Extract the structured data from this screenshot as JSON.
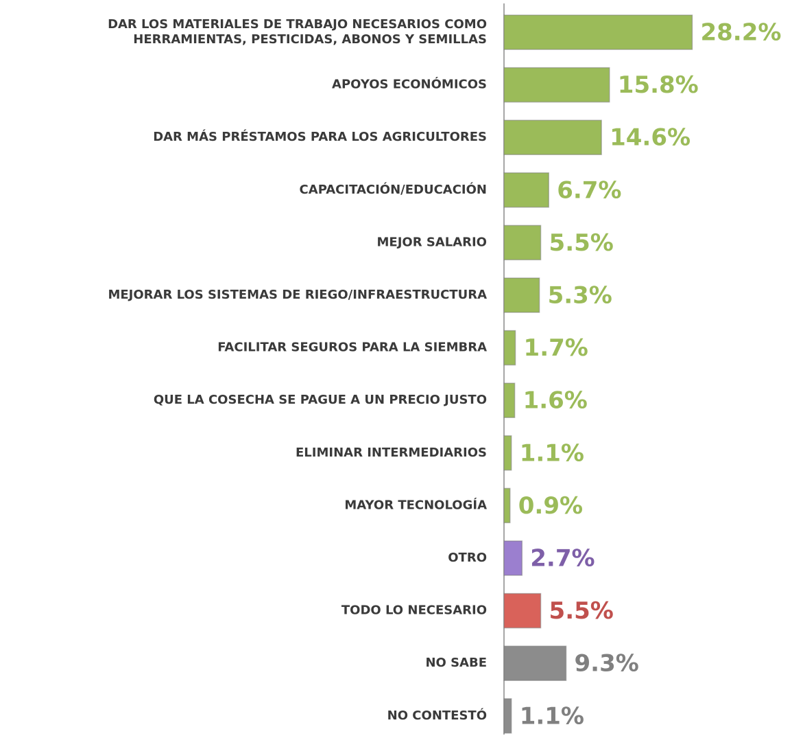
{
  "chart_data": {
    "type": "bar",
    "orientation": "horizontal",
    "categories": [
      "DAR LOS MATERIALES DE TRABAJO NECESARIOS COMO\nHERRAMIENTAS, PESTICIDAS, ABONOS Y SEMILLAS",
      "APOYOS ECONÓMICOS",
      "DAR MÁS PRÉSTAMOS PARA LOS AGRICULTORES",
      "CAPACITACIÓN/EDUCACIÓN",
      "MEJOR SALARIO",
      "MEJORAR LOS SISTEMAS DE RIEGO/INFRAESTRUCTURA",
      "FACILITAR SEGUROS PARA LA SIEMBRA",
      "QUE LA COSECHA SE PAGUE A UN PRECIO JUSTO",
      "ELIMINAR INTERMEDIARIOS",
      "MAYOR TECNOLOGÍA",
      "OTRO",
      "TODO LO NECESARIO",
      "NO SABE",
      "NO CONTESTÓ"
    ],
    "values": [
      28.2,
      15.8,
      14.6,
      6.7,
      5.5,
      5.3,
      1.7,
      1.6,
      1.1,
      0.9,
      2.7,
      5.5,
      9.3,
      1.1
    ],
    "value_labels": [
      "28.2%",
      "15.8%",
      "14.6%",
      "6.7%",
      "5.5%",
      "5.3%",
      "1.7%",
      "1.6%",
      "1.1%",
      "0.9%",
      "2.7%",
      "5.5%",
      "9.3%",
      "1.1%"
    ],
    "colors": [
      "#9bbb59",
      "#9bbb59",
      "#9bbb59",
      "#9bbb59",
      "#9bbb59",
      "#9bbb59",
      "#9bbb59",
      "#9bbb59",
      "#9bbb59",
      "#9bbb59",
      "#9b7fcf",
      "#d9625a",
      "#8c8c8c",
      "#8c8c8c"
    ],
    "label_colors": [
      "#9bbb59",
      "#9bbb59",
      "#9bbb59",
      "#9bbb59",
      "#9bbb59",
      "#9bbb59",
      "#9bbb59",
      "#9bbb59",
      "#9bbb59",
      "#9bbb59",
      "#7e5fa8",
      "#c0504d",
      "#808080",
      "#808080"
    ],
    "xlim": [
      0,
      30
    ]
  }
}
